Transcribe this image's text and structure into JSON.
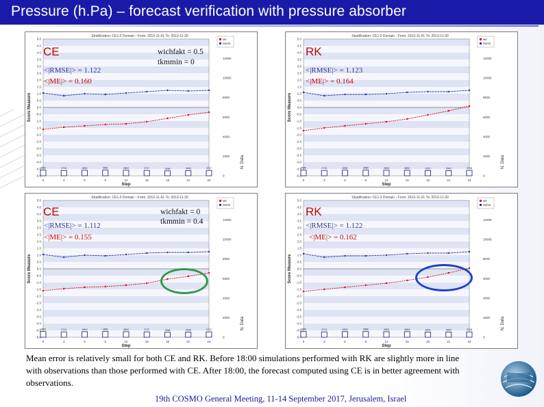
{
  "slide": {
    "title": "Pressure (h.Pa) – forecast verification with pressure absorber",
    "caption": "Mean error is relatively small for both CE and RK. Before 18:00 simulations performed with RK are slightly more in line with observations than those performed with CE. After 18:00, the forecast computed using CE is in better agreement with observations.",
    "footer": "19th COSMO General Meeting, 11-14 September 2017, Jerusalem, Israel",
    "colors": {
      "title_bar": "#1a1aa8",
      "me_series": "#e00000",
      "rmse_series": "#1f2fb0",
      "highlight_green": "#2e9a4a",
      "highlight_blue": "#1a3fd0"
    }
  },
  "panels": [
    {
      "overlay": {
        "label": "CE",
        "rmse": "<|RMSE|> = 1.122",
        "me": "<|ME|> = 0.160",
        "wichfakt": "wichfakt = 0.5",
        "tkmmin": "tkmmin = 0"
      },
      "highlight": "none"
    },
    {
      "overlay": {
        "label": "RK",
        "rmse": "<|RMSE|> = 1.123",
        "me": "<|ME|> = 0.164",
        "wichfakt": "",
        "tkmmin": ""
      },
      "highlight": "none"
    },
    {
      "overlay": {
        "label": "CE",
        "rmse": "<|RMSE|> = 1.112",
        "me": "<|ME|> = 0.155",
        "wichfakt": "wichfakt = 0",
        "tkmmin": "tkmmin = 0.4"
      },
      "highlight": "green"
    },
    {
      "overlay": {
        "label": "RK",
        "rmse": "<|RMSE|> = 1.122",
        "me": "<|ME|> = 0.162",
        "wichfakt": "",
        "tkmmin": ""
      },
      "highlight": "blue"
    }
  ],
  "chart_data": [
    {
      "type": "line",
      "title": "Stratification: CE1.0 Domain - From: 2013-11-01 To: 2013-11-30",
      "xlabel": "Step",
      "ylabel": "Score Measure",
      "y2label": "N. Data",
      "xticks": [
        "0",
        "3",
        "6",
        "9",
        "12",
        "15",
        "18",
        "21",
        "24"
      ],
      "ylim": [
        -5,
        5
      ],
      "yticks": [
        "5.0",
        "4.5",
        "4.0",
        "3.5",
        "3.0",
        "2.5",
        "2.0",
        "1.5",
        "1.0",
        "0.5",
        "0.0",
        "-0.5",
        "-1.0",
        "-1.5",
        "-2.0",
        "-2.5",
        "-3.0",
        "-3.5",
        "-4.0",
        "-4.5",
        "-5.0"
      ],
      "y2ticks": [
        "14000",
        "12000",
        "10000",
        "8000",
        "6000",
        "4000",
        "2000",
        "0"
      ],
      "legend": [
        "ME",
        "RMSE"
      ],
      "x": [
        0,
        3,
        6,
        9,
        12,
        15,
        18,
        21,
        24
      ],
      "series": [
        {
          "name": "ME",
          "values": [
            -1.6,
            -1.45,
            -1.35,
            -1.25,
            -1.2,
            -1.05,
            -0.8,
            -0.55,
            -0.35
          ]
        },
        {
          "name": "RMSE",
          "values": [
            1.05,
            0.85,
            1.0,
            0.95,
            1.05,
            1.15,
            1.25,
            1.2,
            1.25
          ]
        }
      ],
      "bars": [
        2881,
        2713,
        2810,
        2881,
        2803,
        2717,
        2486,
        2605,
        2717
      ],
      "bar_labels": [
        "2881",
        "2713",
        "2810",
        "2881",
        "2803",
        "2717",
        "2486",
        "2605",
        "2717"
      ]
    },
    {
      "type": "line",
      "title": "Stratification: CE1.0 Domain - From: 2013-11-01 To: 2013-11-30",
      "xlabel": "Step",
      "ylabel": "Score Measure",
      "y2label": "N. Data",
      "xticks": [
        "0",
        "3",
        "6",
        "9",
        "12",
        "15",
        "18",
        "21",
        "24"
      ],
      "ylim": [
        -5,
        5
      ],
      "yticks": [
        "5.0",
        "4.5",
        "4.0",
        "3.5",
        "3.0",
        "2.5",
        "2.0",
        "1.5",
        "1.0",
        "0.5",
        "0.0",
        "-0.5",
        "-1.0",
        "-1.5",
        "-2.0",
        "-2.5",
        "-3.0",
        "-3.5",
        "-4.0",
        "-4.5",
        "-5.0"
      ],
      "y2ticks": [
        "14000",
        "12000",
        "10000",
        "8000",
        "6000",
        "4000",
        "2000",
        "0"
      ],
      "legend": [
        "ME",
        "RMSE"
      ],
      "x": [
        0,
        3,
        6,
        9,
        12,
        15,
        18,
        21,
        24
      ],
      "series": [
        {
          "name": "ME",
          "values": [
            -1.7,
            -1.5,
            -1.35,
            -1.2,
            -1.05,
            -0.85,
            -0.55,
            -0.25,
            0.1
          ]
        },
        {
          "name": "RMSE",
          "values": [
            1.1,
            0.85,
            0.95,
            0.95,
            1.0,
            1.1,
            1.15,
            1.15,
            1.25
          ]
        }
      ],
      "bars": [
        2880,
        2713,
        2833,
        2880,
        2803,
        2804,
        2622,
        2603,
        2718
      ],
      "bar_labels": [
        "2880",
        "2713",
        "2833",
        "2880",
        "2803",
        "2804",
        "2622",
        "2603",
        "2718"
      ]
    },
    {
      "type": "line",
      "title": "Stratification: CE1.0 Domain - From: 2013-11-01 To: 2013-11-30",
      "xlabel": "Step",
      "ylabel": "Score Measure",
      "y2label": "N. Data",
      "xticks": [
        "0",
        "3",
        "6",
        "9",
        "12",
        "15",
        "18",
        "21",
        "24"
      ],
      "ylim": [
        -5,
        5
      ],
      "yticks": [
        "5.0",
        "4.5",
        "4.0",
        "3.5",
        "3.0",
        "2.5",
        "2.0",
        "1.5",
        "1.0",
        "0.5",
        "0.0",
        "-0.5",
        "-1.0",
        "-1.5",
        "-2.0",
        "-2.5",
        "-3.0",
        "-3.5",
        "-4.0",
        "-4.5",
        "-5.0"
      ],
      "y2ticks": [
        "14000",
        "12000",
        "10000",
        "8000",
        "6000",
        "4000",
        "2000",
        "0"
      ],
      "legend": [
        "ME",
        "RMSE"
      ],
      "x": [
        0,
        3,
        6,
        9,
        12,
        15,
        18,
        21,
        24
      ],
      "series": [
        {
          "name": "ME",
          "values": [
            -1.6,
            -1.45,
            -1.35,
            -1.3,
            -1.2,
            -1.05,
            -0.75,
            -0.55,
            -0.3
          ]
        },
        {
          "name": "RMSE",
          "values": [
            1.05,
            0.85,
            1.0,
            0.95,
            1.05,
            1.15,
            1.2,
            1.2,
            1.25
          ]
        }
      ],
      "bars": [
        2881,
        2713,
        2810,
        2881,
        2803,
        2717,
        2486,
        2605,
        2717
      ],
      "bar_labels": [
        "2881",
        "2713",
        "2810",
        "2881",
        "2803",
        "2717",
        "2486",
        "2605",
        "2717"
      ]
    },
    {
      "type": "line",
      "title": "Stratification: CE1.0 Domain - From: 2013-11-01 To: 2013-11-30",
      "xlabel": "Step",
      "ylabel": "Score Measure",
      "y2label": "N. Data",
      "xticks": [
        "0",
        "3",
        "6",
        "9",
        "12",
        "15",
        "18",
        "21",
        "24"
      ],
      "ylim": [
        -5,
        5
      ],
      "yticks": [
        "5.0",
        "4.5",
        "4.0",
        "3.5",
        "3.0",
        "2.5",
        "2.0",
        "1.5",
        "1.0",
        "0.5",
        "0.0",
        "-0.5",
        "-1.0",
        "-1.5",
        "-2.0",
        "-2.5",
        "-3.0",
        "-3.5",
        "-4.0",
        "-4.5",
        "-5.0"
      ],
      "y2ticks": [
        "14000",
        "12000",
        "10000",
        "8000",
        "6000",
        "4000",
        "2000",
        "0"
      ],
      "legend": [
        "ME",
        "RMSE"
      ],
      "x": [
        0,
        3,
        6,
        9,
        12,
        15,
        18,
        21,
        24
      ],
      "series": [
        {
          "name": "ME",
          "values": [
            -1.65,
            -1.5,
            -1.35,
            -1.2,
            -1.05,
            -0.85,
            -0.6,
            -0.3,
            0.05
          ]
        },
        {
          "name": "RMSE",
          "values": [
            1.1,
            0.85,
            0.95,
            0.95,
            1.0,
            1.1,
            1.15,
            1.15,
            1.25
          ]
        }
      ],
      "bars": [
        2880,
        2713,
        2833,
        2880,
        2803,
        2804,
        2622,
        2603,
        2718
      ],
      "bar_labels": [
        "2880",
        "2713",
        "2833",
        "2880",
        "2803",
        "2804",
        "2622",
        "2603",
        "2718"
      ]
    }
  ]
}
